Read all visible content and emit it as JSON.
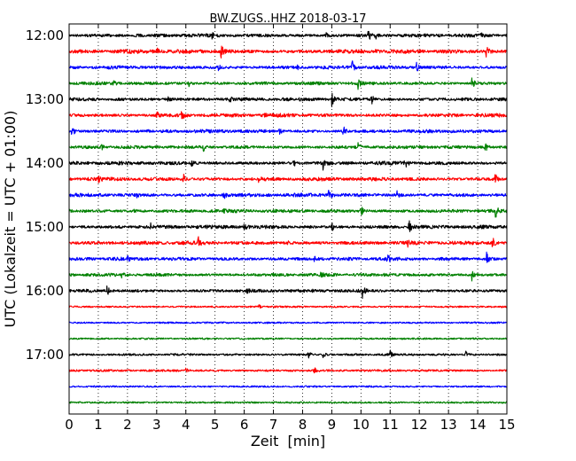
{
  "chart_data": {
    "type": "line",
    "title": "BW.ZUGS..HHZ 2018-03-17",
    "xlabel": "Zeit  [min]",
    "ylabel": "UTC (Lokalzeit = UTC + 01:00)",
    "xlim": [
      0,
      15
    ],
    "x_ticks": [
      "0",
      "1",
      "2",
      "3",
      "4",
      "5",
      "6",
      "7",
      "8",
      "9",
      "10",
      "11",
      "12",
      "13",
      "14",
      "15"
    ],
    "y_ticks": [
      "12:00",
      "13:00",
      "14:00",
      "15:00",
      "16:00",
      "17:00"
    ],
    "grid": "vertical-dotted",
    "row_colors": [
      "#000000",
      "#ff0000",
      "#0000ff",
      "#008000"
    ],
    "traces": [
      {
        "start": "12:00",
        "activity": 0.55,
        "events": [
          [
            10.25,
            1.0
          ],
          [
            10.5,
            0.8
          ],
          [
            4.9,
            0.4
          ],
          [
            8.8,
            0.4
          ],
          [
            14.1,
            0.4
          ]
        ]
      },
      {
        "start": "12:15",
        "activity": 0.7,
        "events": [
          [
            5.2,
            1.3
          ],
          [
            14.3,
            1.1
          ],
          [
            3.0,
            0.6
          ],
          [
            10.5,
            0.4
          ]
        ]
      },
      {
        "start": "12:30",
        "activity": 0.55,
        "events": [
          [
            9.7,
            1.0
          ],
          [
            11.9,
            0.9
          ],
          [
            5.1,
            0.5
          ],
          [
            7.8,
            0.4
          ]
        ]
      },
      {
        "start": "12:45",
        "activity": 0.5,
        "events": [
          [
            13.8,
            1.2
          ],
          [
            9.9,
            0.9
          ],
          [
            4.1,
            0.5
          ],
          [
            1.5,
            0.4
          ]
        ]
      },
      {
        "start": "13:00",
        "activity": 0.55,
        "events": [
          [
            9.0,
            1.2
          ],
          [
            10.35,
            0.9
          ],
          [
            5.5,
            0.4
          ],
          [
            3.4,
            0.4
          ]
        ]
      },
      {
        "start": "13:15",
        "activity": 0.6,
        "events": [
          [
            3.85,
            1.0
          ],
          [
            3.0,
            0.6
          ],
          [
            6.7,
            0.4
          ]
        ]
      },
      {
        "start": "13:30",
        "activity": 0.55,
        "events": [
          [
            0.1,
            0.9
          ],
          [
            9.4,
            1.0
          ],
          [
            13.1,
            0.6
          ],
          [
            7.2,
            0.4
          ]
        ]
      },
      {
        "start": "13:45",
        "activity": 0.5,
        "events": [
          [
            4.6,
            0.8
          ],
          [
            9.9,
            0.7
          ],
          [
            14.25,
            1.0
          ],
          [
            1.1,
            0.4
          ]
        ]
      },
      {
        "start": "14:00",
        "activity": 0.6,
        "events": [
          [
            8.7,
            1.0
          ],
          [
            11.5,
            1.1
          ],
          [
            7.7,
            0.5
          ],
          [
            4.2,
            0.4
          ]
        ]
      },
      {
        "start": "14:15",
        "activity": 0.6,
        "events": [
          [
            3.9,
            1.0
          ],
          [
            14.6,
            0.9
          ],
          [
            6.5,
            0.5
          ],
          [
            1.0,
            0.4
          ]
        ]
      },
      {
        "start": "14:30",
        "activity": 0.6,
        "events": [
          [
            8.9,
            1.0
          ],
          [
            11.2,
            1.0
          ],
          [
            5.3,
            0.6
          ],
          [
            2.3,
            0.4
          ]
        ]
      },
      {
        "start": "14:45",
        "activity": 0.55,
        "events": [
          [
            14.6,
            1.3
          ],
          [
            10.0,
            0.8
          ],
          [
            5.3,
            0.7
          ],
          [
            2.2,
            0.5
          ]
        ]
      },
      {
        "start": "15:00",
        "activity": 0.6,
        "events": [
          [
            11.65,
            1.0
          ],
          [
            9.0,
            0.6
          ],
          [
            2.8,
            0.5
          ],
          [
            6.0,
            0.4
          ]
        ]
      },
      {
        "start": "15:15",
        "activity": 0.6,
        "events": [
          [
            4.4,
            1.2
          ],
          [
            14.5,
            1.1
          ],
          [
            11.6,
            0.5
          ],
          [
            7.5,
            0.4
          ]
        ]
      },
      {
        "start": "15:30",
        "activity": 0.55,
        "events": [
          [
            10.9,
            1.0
          ],
          [
            14.3,
            1.1
          ],
          [
            8.4,
            0.6
          ],
          [
            2.0,
            0.4
          ]
        ]
      },
      {
        "start": "15:45",
        "activity": 0.5,
        "events": [
          [
            13.8,
            1.0
          ],
          [
            8.6,
            0.5
          ],
          [
            1.8,
            0.4
          ]
        ]
      },
      {
        "start": "16:00",
        "activity": 0.5,
        "events": [
          [
            1.3,
            0.7
          ],
          [
            10.05,
            1.0
          ],
          [
            6.1,
            0.4
          ]
        ]
      },
      {
        "start": "16:15",
        "activity": 0.15,
        "events": [
          [
            6.5,
            0.3
          ]
        ]
      },
      {
        "start": "16:30",
        "activity": 0.15,
        "events": []
      },
      {
        "start": "16:45",
        "activity": 0.15,
        "events": []
      },
      {
        "start": "17:00",
        "activity": 0.25,
        "events": [
          [
            8.2,
            0.5
          ],
          [
            8.7,
            0.4
          ],
          [
            11.0,
            0.7
          ],
          [
            13.6,
            0.6
          ]
        ]
      },
      {
        "start": "17:15",
        "activity": 0.25,
        "events": [
          [
            8.4,
            0.5
          ],
          [
            4.0,
            0.4
          ]
        ]
      },
      {
        "start": "17:30",
        "activity": 0.15,
        "events": []
      },
      {
        "start": "17:45",
        "activity": 0.15,
        "events": []
      }
    ]
  }
}
